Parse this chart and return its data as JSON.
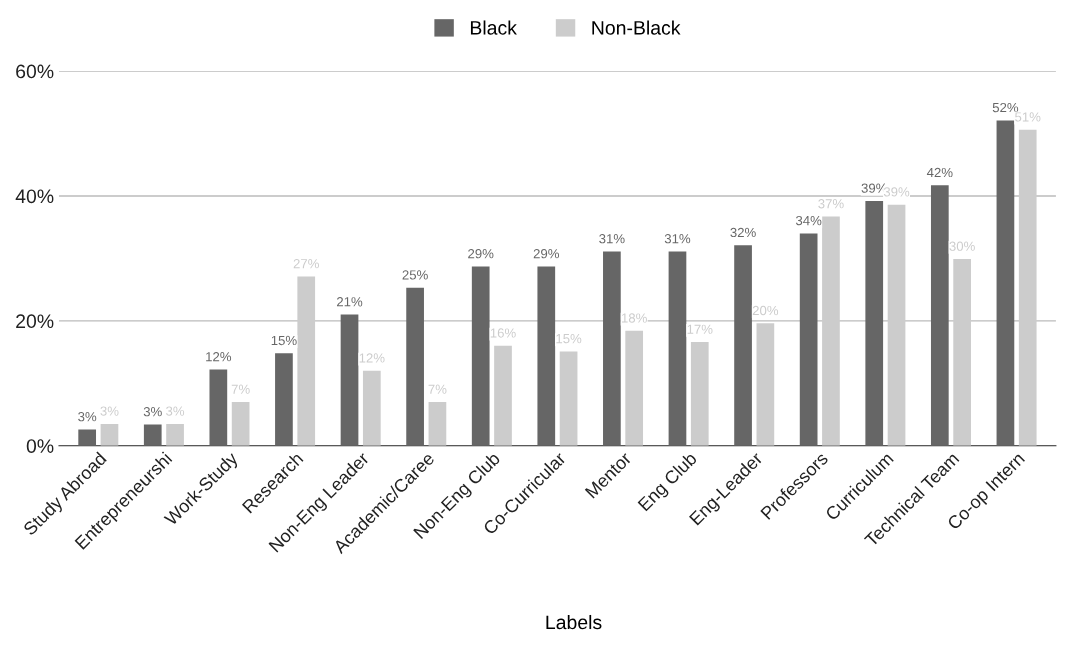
{
  "chart_data": {
    "type": "bar",
    "xlabel": "Labels",
    "categories": [
      "Study Abroad",
      "Entrepreneurshi",
      "Work-Study",
      "Research",
      "Non-Eng Leader",
      "Academic/Caree",
      "Non-Eng Club",
      "Co-Curricular",
      "Mentor",
      "Eng Club",
      "Eng-Leader",
      "Professors",
      "Curriculum",
      "Technical Team",
      "Co-op Intern"
    ],
    "series": [
      {
        "name": "Black",
        "color": "#666666",
        "values": [
          2.6,
          3.4,
          12.2,
          14.8,
          21.0,
          25.3,
          28.7,
          28.7,
          31.1,
          31.1,
          32.1,
          34.0,
          39.2,
          41.7,
          52.1
        ],
        "value_labels": [
          "3%",
          "3%",
          "12%",
          "15%",
          "21%",
          "25%",
          "29%",
          "29%",
          "31%",
          "31%",
          "32%",
          "34%",
          "39%",
          "42%",
          "52%"
        ]
      },
      {
        "name": "Non-Black",
        "color": "#cccccc",
        "values": [
          3.5,
          3.5,
          7.0,
          27.1,
          12.0,
          7.0,
          16.0,
          15.1,
          18.4,
          16.6,
          19.6,
          36.7,
          38.6,
          29.9,
          50.6
        ],
        "value_labels": [
          "3%",
          "3%",
          "7%",
          "27%",
          "12%",
          "7%",
          "16%",
          "15%",
          "18%",
          "17%",
          "20%",
          "37%",
          "39%",
          "30%",
          "51%"
        ]
      }
    ],
    "ylim": [
      0,
      60
    ],
    "yticks": [
      {
        "value": 0,
        "label": "0%"
      },
      {
        "value": 20,
        "label": "20%"
      },
      {
        "value": 40,
        "label": "40%"
      },
      {
        "value": 60,
        "label": "60%"
      }
    ],
    "grid": "y",
    "legend": "top"
  }
}
